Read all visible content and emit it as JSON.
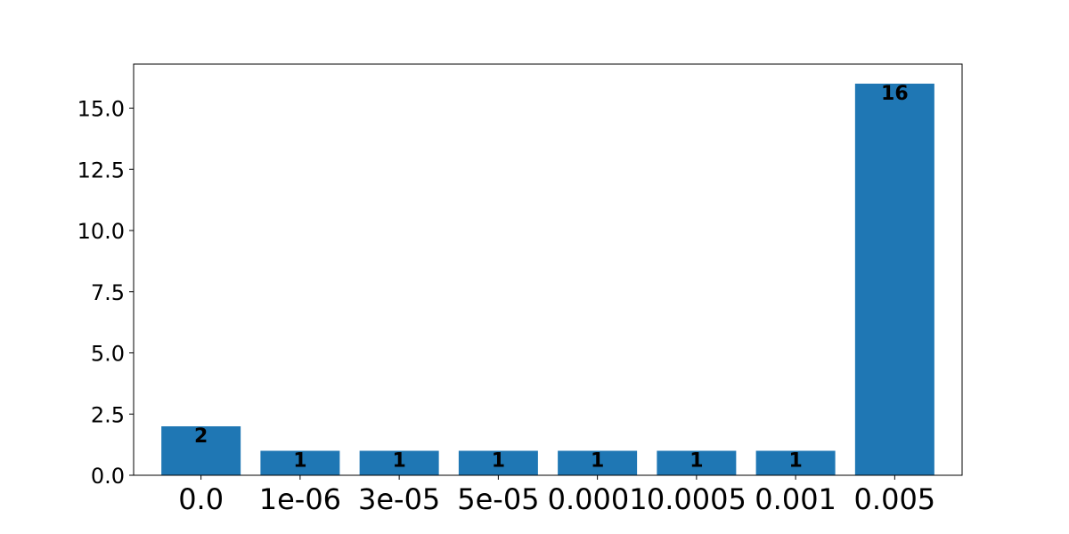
{
  "chart_data": {
    "type": "bar",
    "categories": [
      "0.0",
      "1e-06",
      "3e-05",
      "5e-05",
      "0.0001",
      "0.0005",
      "0.001",
      "0.005"
    ],
    "values": [
      2,
      1,
      1,
      1,
      1,
      1,
      1,
      16
    ],
    "data_labels": [
      "2",
      "1",
      "1",
      "1",
      "1",
      "1",
      "1",
      "16"
    ],
    "yticks": [
      0.0,
      2.5,
      5.0,
      7.5,
      10.0,
      12.5,
      15.0
    ],
    "ytick_labels": [
      "0.0",
      "2.5",
      "5.0",
      "7.5",
      "10.0",
      "12.5",
      "15.0"
    ],
    "ylim": [
      0,
      16.8
    ],
    "bar_color": "#1f77b4",
    "grid": false,
    "legend": "none"
  }
}
